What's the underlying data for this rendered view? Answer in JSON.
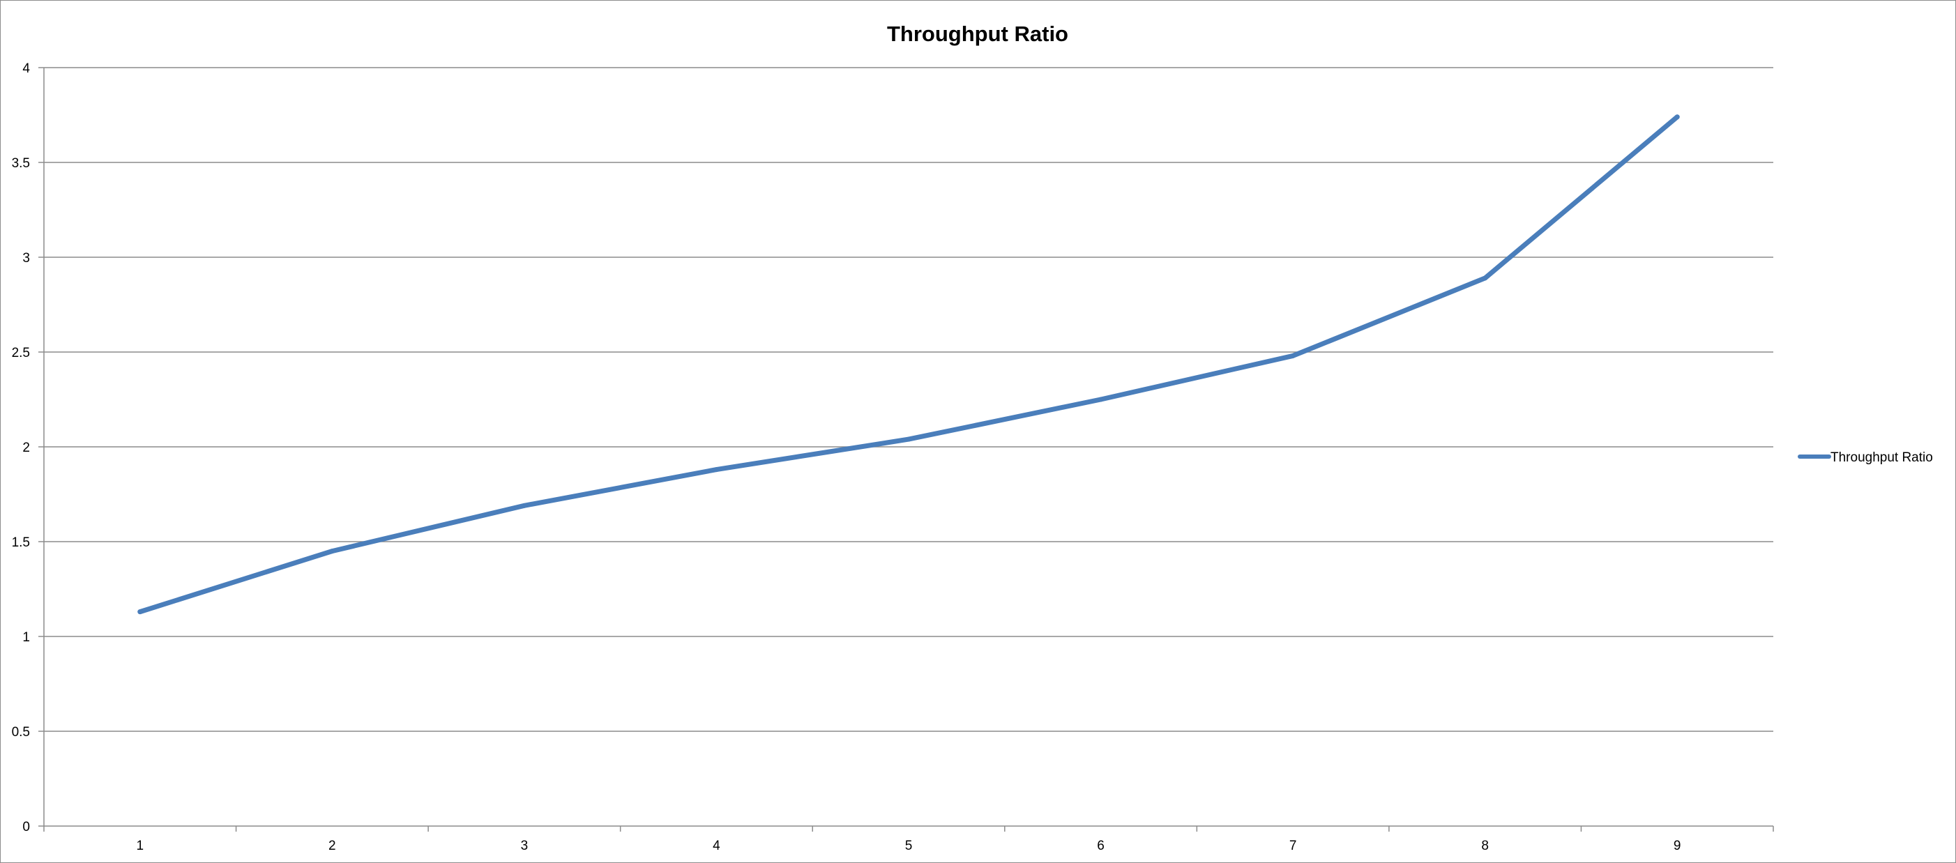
{
  "chart_data": {
    "type": "line",
    "title": "Throughput Ratio",
    "xlabel": "",
    "ylabel": "",
    "categories": [
      "1",
      "2",
      "3",
      "4",
      "5",
      "6",
      "7",
      "8",
      "9"
    ],
    "series": [
      {
        "name": "Throughput Ratio",
        "values": [
          1.13,
          1.45,
          1.69,
          1.88,
          2.04,
          2.25,
          2.48,
          2.89,
          3.74
        ],
        "color": "#4a7ebb"
      }
    ],
    "ylim": [
      0,
      4
    ],
    "yticks": [
      "0",
      "0.5",
      "1",
      "1.5",
      "2",
      "2.5",
      "3",
      "3.5",
      "4"
    ],
    "grid": true,
    "legend_position": "right"
  }
}
